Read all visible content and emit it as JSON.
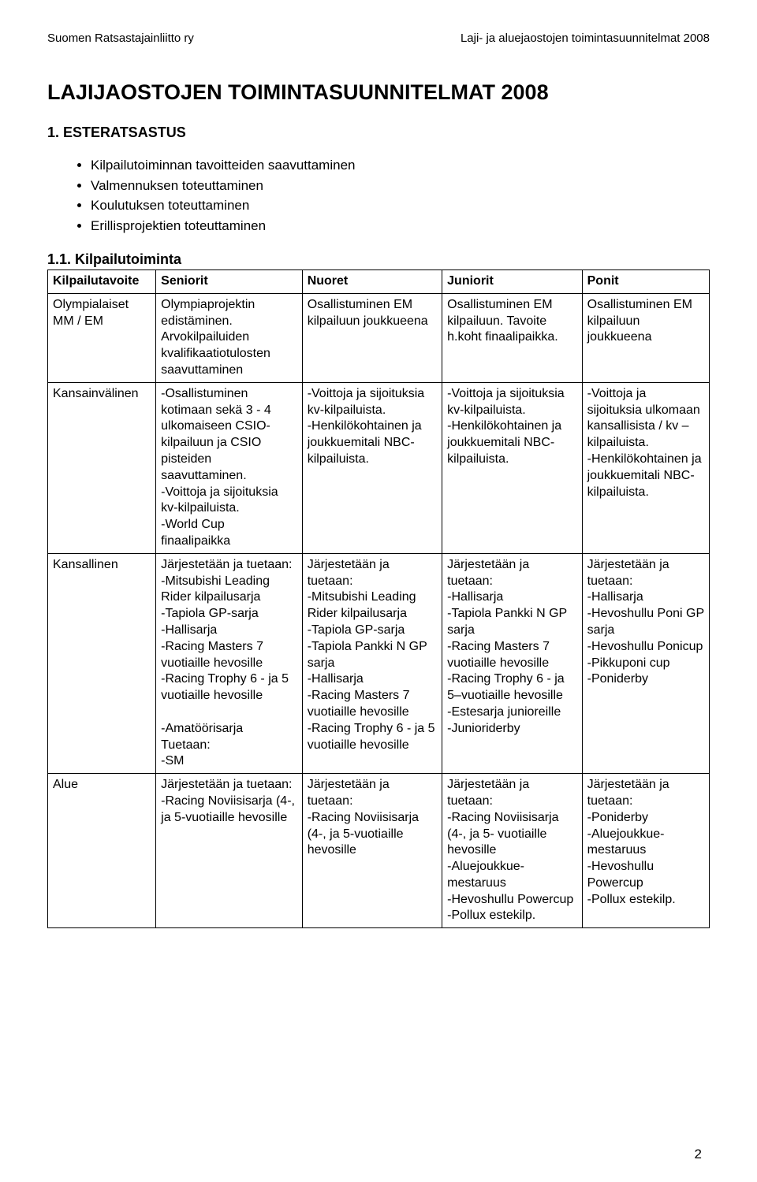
{
  "header": {
    "left": "Suomen Ratsastajainliitto ry",
    "right": "Laji- ja aluejaostojen toimintasuunnitelmat 2008"
  },
  "main_title": "LAJIJAOSTOJEN TOIMINTASUUNNITELMAT 2008",
  "section_title": "1. ESTERATSASTUS",
  "bullets": [
    "Kilpailutoiminnan tavoitteiden saavuttaminen",
    "Valmennuksen toteuttaminen",
    "Koulutuksen toteuttaminen",
    "Erillisprojektien toteuttaminen"
  ],
  "sub_heading": "1.1. Kilpailutoiminta",
  "table": {
    "header": [
      "Kilpailutavoite",
      "Seniorit",
      "Nuoret",
      "Juniorit",
      "Ponit"
    ],
    "rows": [
      {
        "c0": "Olympialaiset MM / EM",
        "c1": "Olympiaprojektin edistäminen. Arvokilpailuiden kvalifikaatiotulosten saavuttaminen",
        "c2": "Osallistuminen EM kilpailuun joukkueena",
        "c3": "Osallistuminen EM kilpailuun. Tavoite h.koht finaalipaikka.",
        "c4": "Osallistuminen EM kilpailuun joukkueena"
      },
      {
        "c0": "Kansainvälinen",
        "c1": "-Osallistuminen kotimaan sekä 3 - 4 ulkomaiseen CSIO-kilpailuun ja CSIO pisteiden saavuttaminen.\n-Voittoja ja sijoituksia kv-kilpailuista.\n-World Cup finaalipaikka",
        "c2": "-Voittoja ja sijoituksia kv-kilpailuista.\n-Henkilökohtainen ja joukkuemitali NBC-kilpailuista.",
        "c3": "-Voittoja ja sijoituksia kv-kilpailuista.\n-Henkilökohtainen ja joukkuemitali NBC-kilpailuista.",
        "c4": "-Voittoja ja sijoituksia ulkomaan kansallisista / kv – kilpailuista.\n-Henkilökohtainen ja joukkuemitali NBC-kilpailuista."
      },
      {
        "c0": "Kansallinen",
        "c1": "Järjestetään ja tuetaan:\n-Mitsubishi Leading Rider kilpailusarja\n-Tapiola GP-sarja\n-Hallisarja\n-Racing Masters 7 vuotiaille hevosille\n-Racing Trophy 6 - ja 5 vuotiaille hevosille\n\n-Amatöörisarja\nTuetaan:\n-SM",
        "c2": "Järjestetään ja tuetaan:\n-Mitsubishi Leading Rider kilpailusarja\n-Tapiola GP-sarja\n-Tapiola Pankki N GP sarja\n-Hallisarja\n-Racing Masters 7 vuotiaille hevosille\n-Racing Trophy 6 - ja 5 vuotiaille hevosille",
        "c3": "Järjestetään ja tuetaan:\n-Hallisarja\n-Tapiola Pankki N GP sarja\n-Racing Masters 7 vuotiaille hevosille\n-Racing Trophy 6 - ja 5–vuotiaille hevosille\n-Estesarja junioreille\n-Junioriderby",
        "c4": "Järjestetään ja tuetaan:\n-Hallisarja\n-Hevoshullu Poni GP sarja\n-Hevoshullu Ponicup\n-Pikkuponi cup\n-Poniderby"
      },
      {
        "c0": "Alue",
        "c1": "Järjestetään ja tuetaan:\n-Racing Noviisisarja (4-, ja 5-vuotiaille hevosille",
        "c2": "Järjestetään ja tuetaan:\n-Racing Noviisisarja (4-, ja 5-vuotiaille hevosille",
        "c3": "Järjestetään ja tuetaan:\n-Racing Noviisisarja (4-, ja 5- vuotiaille hevosille\n-Aluejoukkue-mestaruus\n-Hevoshullu Powercup\n-Pollux estekilp.",
        "c4": "Järjestetään ja tuetaan:\n-Poniderby\n-Aluejoukkue-mestaruus\n-Hevoshullu Powercup\n-Pollux estekilp."
      }
    ]
  },
  "page_number": "2"
}
